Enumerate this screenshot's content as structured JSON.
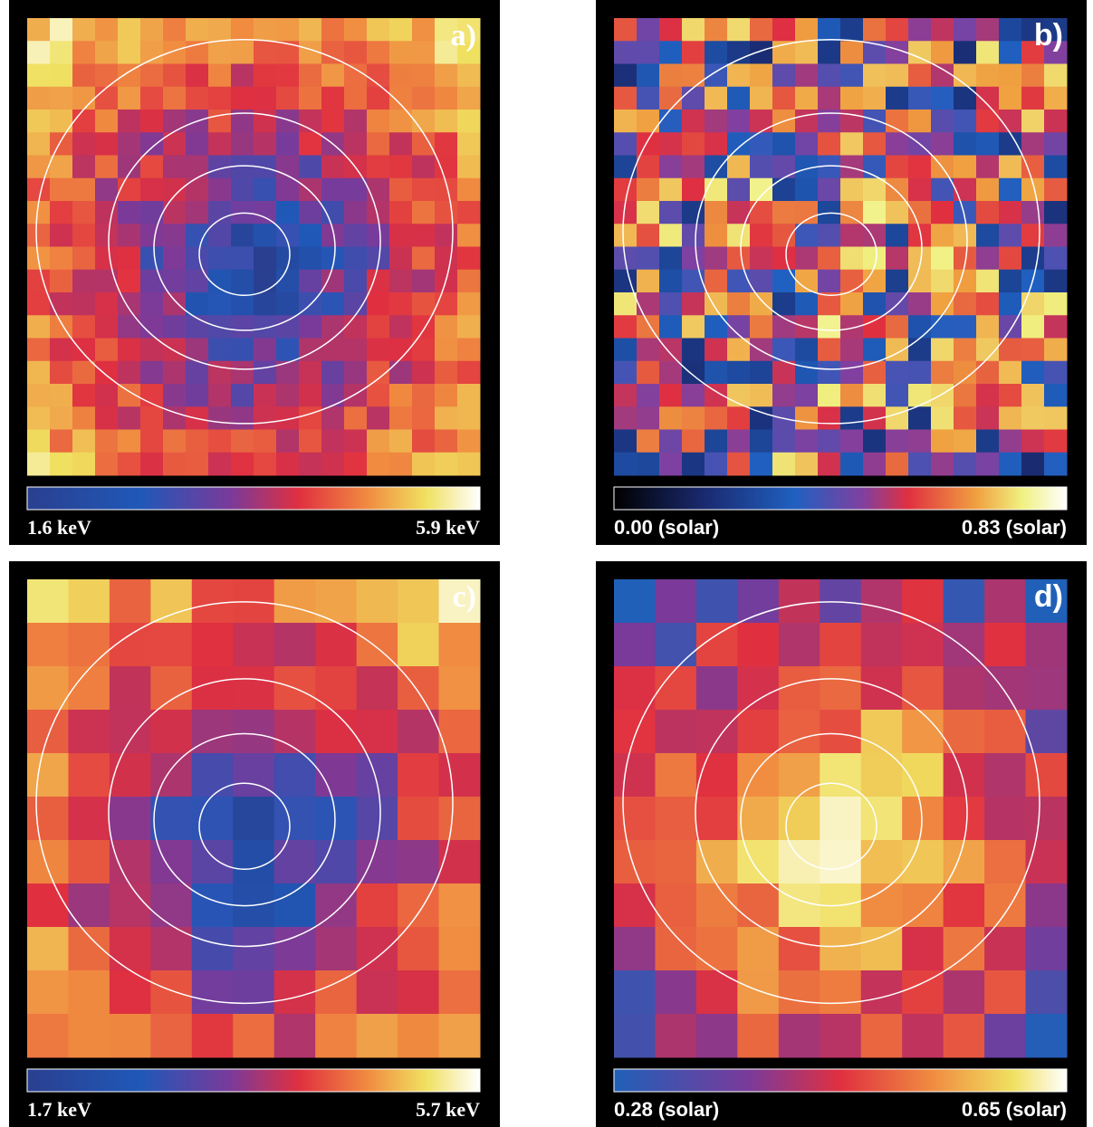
{
  "panels": [
    {
      "label": "a)",
      "scale_min": "1.6 keV",
      "scale_max": "5.9 keV"
    },
    {
      "label": "b)",
      "scale_min": "0.00 (solar)",
      "scale_max": "0.83 (solar)"
    },
    {
      "label": "c)",
      "scale_min": "1.7 keV",
      "scale_max": "5.7 keV"
    },
    {
      "label": "d)",
      "scale_min": "0.28 (solar)",
      "scale_max": "0.65 (solar)"
    }
  ]
}
